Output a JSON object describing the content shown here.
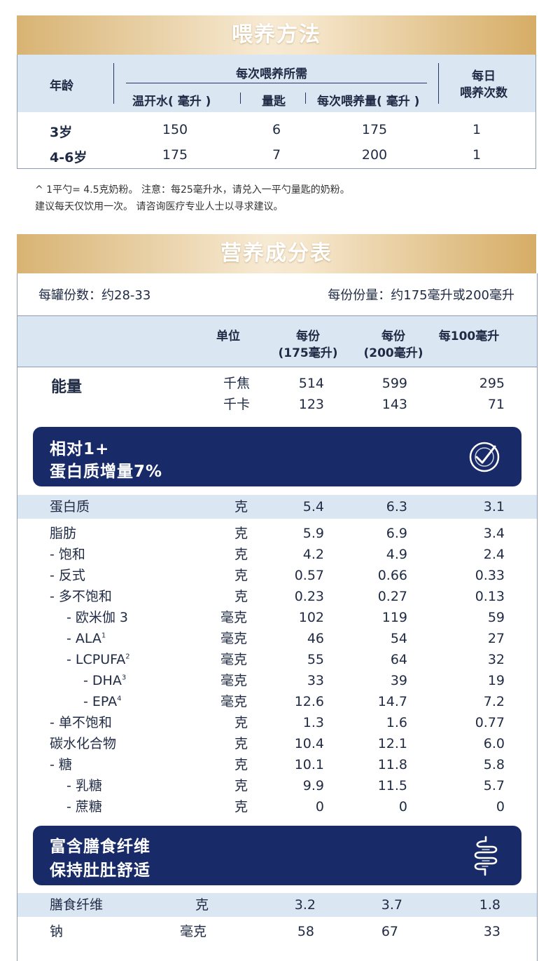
{
  "feeding": {
    "title": "喂养方法",
    "col_age": "年龄",
    "col_group": "每次喂养所需",
    "col_water": "温开水( 毫升 )",
    "col_scoop": "量匙",
    "col_amount": "每次喂养量( 毫升 )",
    "col_daily_1": "每日",
    "col_daily_2": "喂养次数",
    "rows": [
      {
        "age": "3岁",
        "water": "150",
        "scoop": "6",
        "amount": "175",
        "daily": "1"
      },
      {
        "age": "4-6岁",
        "water": "175",
        "scoop": "7",
        "amount": "200",
        "daily": "1"
      }
    ],
    "note_1": "^ 1平勺= 4.5克奶粉。 注意：每25毫升水，请兑入一平勺量匙的奶粉。",
    "note_2": "建议每天仅饮用一次。 请咨询医疗专业人士以寻求建议。"
  },
  "nutrition": {
    "title": "营养成分表",
    "servings_per_can": "每罐份数：约28-33",
    "serving_size": "每份份量：约175毫升或200毫升",
    "head_unit": "单位",
    "head_a1": "每份",
    "head_a2": "(175毫升)",
    "head_b1": "每份",
    "head_b2": "(200毫升)",
    "head_c": "每100毫升",
    "energy": {
      "label": "能量",
      "rows": [
        {
          "unit": "千焦",
          "a": "514",
          "b": "599",
          "c": "295"
        },
        {
          "unit": "千卡",
          "a": "123",
          "b": "143",
          "c": "71"
        }
      ]
    },
    "callout_protein": {
      "line1": "相对1+",
      "line2": "蛋白质增量7%",
      "icon": "checkmark-circle-icon"
    },
    "protein": {
      "name": "蛋白质",
      "unit": "克",
      "a": "5.4",
      "b": "6.3",
      "c": "3.1"
    },
    "rows": [
      {
        "name": "脂肪",
        "sup": "",
        "indent": 0,
        "unit": "克",
        "a": "5.9",
        "b": "6.9",
        "c": "3.4"
      },
      {
        "name": "- 饱和",
        "sup": "",
        "indent": 0,
        "unit": "克",
        "a": "4.2",
        "b": "4.9",
        "c": "2.4"
      },
      {
        "name": "- 反式",
        "sup": "",
        "indent": 0,
        "unit": "克",
        "a": "0.57",
        "b": "0.66",
        "c": "0.33"
      },
      {
        "name": "- 多不饱和",
        "sup": "",
        "indent": 0,
        "unit": "克",
        "a": "0.23",
        "b": "0.27",
        "c": "0.13"
      },
      {
        "name": "- 欧米伽 3",
        "sup": "",
        "indent": 1,
        "unit": "毫克",
        "a": "102",
        "b": "119",
        "c": "59"
      },
      {
        "name": "- ALA",
        "sup": "1",
        "indent": 1,
        "unit": "毫克",
        "a": "46",
        "b": "54",
        "c": "27"
      },
      {
        "name": "- LCPUFA",
        "sup": "2",
        "indent": 1,
        "unit": "毫克",
        "a": "55",
        "b": "64",
        "c": "32"
      },
      {
        "name": "- DHA",
        "sup": "3",
        "indent": 2,
        "unit": "毫克",
        "a": "33",
        "b": "39",
        "c": "19"
      },
      {
        "name": "- EPA",
        "sup": "4",
        "indent": 2,
        "unit": "毫克",
        "a": "12.6",
        "b": "14.7",
        "c": "7.2"
      },
      {
        "name": "- 单不饱和",
        "sup": "",
        "indent": 0,
        "unit": "克",
        "a": "1.3",
        "b": "1.6",
        "c": "0.77"
      },
      {
        "name": "碳水化合物",
        "sup": "",
        "indent": 0,
        "unit": "克",
        "a": "10.4",
        "b": "12.1",
        "c": "6.0"
      },
      {
        "name": "- 糖",
        "sup": "",
        "indent": 0,
        "unit": "克",
        "a": "10.1",
        "b": "11.8",
        "c": "5.8"
      },
      {
        "name": "- 乳糖",
        "sup": "",
        "indent": 1,
        "unit": "克",
        "a": "9.9",
        "b": "11.5",
        "c": "5.7"
      },
      {
        "name": "- 蔗糖",
        "sup": "",
        "indent": 1,
        "unit": "克",
        "a": "0",
        "b": "0",
        "c": "0"
      }
    ],
    "callout_fiber": {
      "line1": "富含膳食纤维",
      "line2": "保持肚肚舒适",
      "icon": "intestine-icon"
    },
    "fiber": {
      "name": "膳食纤维",
      "unit": "克",
      "a": "3.2",
      "b": "3.7",
      "c": "1.8"
    },
    "sodium": {
      "name": "钠",
      "unit": "毫克",
      "a": "58",
      "b": "67",
      "c": "33"
    }
  }
}
